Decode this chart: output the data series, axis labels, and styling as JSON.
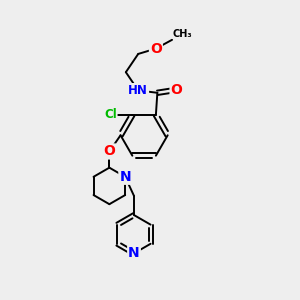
{
  "bg_color": "#eeeeee",
  "bond_color": "#000000",
  "atom_colors": {
    "O": "#ff0000",
    "N": "#0000ff",
    "Cl": "#00bb00",
    "C": "#000000",
    "H": "#555555"
  },
  "font_size": 8.5,
  "bond_width": 1.4,
  "figsize": [
    3.0,
    3.0
  ],
  "dpi": 100
}
